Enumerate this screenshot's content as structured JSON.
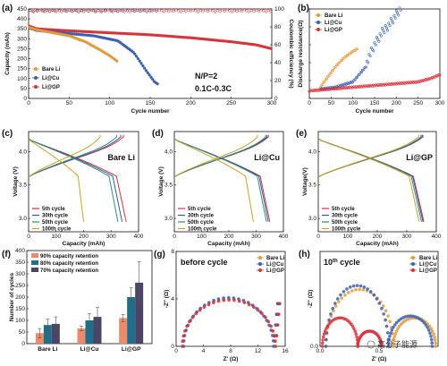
{
  "colors": {
    "bare": "#e39a3b",
    "cu": "#3a5fb3",
    "gp": "#d9333a",
    "c5": "#d9333a",
    "c30": "#2f5aa8",
    "c50": "#2f8f7a",
    "c100": "#c9a227",
    "bar90": "#ec8a6c",
    "bar80": "#1f6f8b",
    "bar70": "#4b4466"
  },
  "watermark": {
    "text": "高分子能源"
  },
  "chart_data": [
    {
      "panel": "(a)",
      "type": "scatter",
      "xlabel": "Cycle number",
      "ylabel": "Capacity (mAh)",
      "y2label": "Coulombic efficiency (%)",
      "xlim": [
        0,
        300
      ],
      "ylim": [
        0,
        450
      ],
      "y2lim": [
        0,
        100
      ],
      "xticks": [
        "0",
        "50",
        "100",
        "150",
        "200",
        "250",
        "300"
      ],
      "yticks": [
        "0",
        "50",
        "100",
        "150",
        "200",
        "250",
        "300",
        "350",
        "400",
        "450"
      ],
      "y2ticks": [
        "0",
        "20",
        "40",
        "60",
        "80",
        "100"
      ],
      "annotations": [
        "N/P=2",
        "0.1C-0.3C"
      ],
      "legend_position": "bottom-left",
      "series": [
        {
          "name": "Bare Li",
          "cycles": 110,
          "capacity": [
            [
              0,
              358
            ],
            [
              10,
              345
            ],
            [
              30,
              330
            ],
            [
              50,
              315
            ],
            [
              70,
              285
            ],
            [
              90,
              240
            ],
            [
              100,
              215
            ],
            [
              110,
              185
            ]
          ],
          "efficiency": 99
        },
        {
          "name": "Li@Cu",
          "cycles": 160,
          "capacity": [
            [
              0,
              355
            ],
            [
              10,
              342
            ],
            [
              40,
              330
            ],
            [
              80,
              315
            ],
            [
              110,
              290
            ],
            [
              130,
              230
            ],
            [
              145,
              140
            ],
            [
              155,
              85
            ],
            [
              160,
              70
            ]
          ],
          "efficiency": 99
        },
        {
          "name": "Li@GP",
          "cycles": 300,
          "capacity": [
            [
              0,
              365
            ],
            [
              10,
              350
            ],
            [
              50,
              340
            ],
            [
              100,
              330
            ],
            [
              150,
              320
            ],
            [
              200,
              305
            ],
            [
              250,
              285
            ],
            [
              280,
              270
            ],
            [
              300,
              250
            ]
          ],
          "efficiency": 99
        }
      ]
    },
    {
      "panel": "(b)",
      "type": "scatter",
      "xlabel": "Cycle number",
      "ylabel": "Discharge resistance(Ω)",
      "xlim": [
        0,
        300
      ],
      "ylim": [
        0,
        1
      ],
      "xticks": [
        "0",
        "50",
        "100",
        "150",
        "200",
        "250",
        "300"
      ],
      "yticks": [
        "",
        "",
        "",
        "",
        "",
        ""
      ],
      "legend_position": "top-left",
      "series": [
        {
          "name": "Bare Li",
          "values": [
            [
              25,
              0.12
            ],
            [
              40,
              0.22
            ],
            [
              60,
              0.35
            ],
            [
              80,
              0.45
            ],
            [
              100,
              0.52
            ],
            [
              110,
              0.55
            ]
          ]
        },
        {
          "name": "Li@Cu",
          "values": [
            [
              25,
              0.1
            ],
            [
              60,
              0.12
            ],
            [
              100,
              0.18
            ],
            [
              130,
              0.35
            ],
            [
              150,
              0.55
            ],
            [
              170,
              0.7
            ],
            [
              190,
              0.82
            ],
            [
              210,
              0.95
            ]
          ]
        },
        {
          "name": "Li@GP",
          "values": [
            [
              0,
              0.08
            ],
            [
              50,
              0.1
            ],
            [
              100,
              0.12
            ],
            [
              150,
              0.14
            ],
            [
              200,
              0.16
            ],
            [
              250,
              0.18
            ],
            [
              280,
              0.22
            ],
            [
              300,
              0.26
            ]
          ]
        }
      ]
    },
    {
      "panel": "(c)",
      "type": "line",
      "title": "Bare Li",
      "xlabel": "Capacity (mAh)",
      "ylabel": "Voltage (V)",
      "xlim": [
        0,
        400
      ],
      "ylim": [
        2.8,
        4.3
      ],
      "xticks": [
        "0",
        "100",
        "200",
        "300",
        "400"
      ],
      "yticks": [
        "3.0",
        "3.5",
        "4.0"
      ],
      "legend_position": "bottom-left",
      "series": [
        {
          "name": "5th cycle",
          "charge_end": 345,
          "discharge_end": 355
        },
        {
          "name": "30th cycle",
          "charge_end": 335,
          "discharge_end": 340
        },
        {
          "name": "50th cycle",
          "charge_end": 320,
          "discharge_end": 325
        },
        {
          "name": "100th cycle",
          "charge_end": 260,
          "discharge_end": 200
        }
      ]
    },
    {
      "panel": "(d)",
      "type": "line",
      "title": "Li@Cu",
      "xlabel": "Capacity (mAh)",
      "ylabel": "Voltage (V)",
      "xlim": [
        0,
        400
      ],
      "ylim": [
        2.8,
        4.3
      ],
      "xticks": [
        "0",
        "100",
        "200",
        "300",
        "400"
      ],
      "yticks": [
        "3.0",
        "3.5",
        "4.0"
      ],
      "legend_position": "bottom-left",
      "series": [
        {
          "name": "5th cycle",
          "charge_end": 345,
          "discharge_end": 350
        },
        {
          "name": "30th cycle",
          "charge_end": 340,
          "discharge_end": 345
        },
        {
          "name": "50th cycle",
          "charge_end": 335,
          "discharge_end": 338
        },
        {
          "name": "100th cycle",
          "charge_end": 305,
          "discharge_end": 290
        }
      ]
    },
    {
      "panel": "(e)",
      "type": "line",
      "title": "Li@GP",
      "xlabel": "Capacity (mAh)",
      "ylabel": "Voltage(V)",
      "xlim": [
        0,
        400
      ],
      "ylim": [
        2.8,
        4.3
      ],
      "xticks": [
        "0",
        "100",
        "200",
        "300",
        "400"
      ],
      "yticks": [
        "3.0",
        "3.5",
        "4.0"
      ],
      "legend_position": "bottom-left",
      "series": [
        {
          "name": "5th cycle",
          "charge_end": 355,
          "discharge_end": 358
        },
        {
          "name": "30th cycle",
          "charge_end": 352,
          "discharge_end": 355
        },
        {
          "name": "50th cycle",
          "charge_end": 348,
          "discharge_end": 350
        },
        {
          "name": "100th cycle",
          "charge_end": 340,
          "discharge_end": 342
        }
      ]
    },
    {
      "panel": "(f)",
      "type": "bar",
      "xlabel": "",
      "ylabel": "Number of cycles",
      "ylim": [
        0,
        400
      ],
      "yticks": [
        "0",
        "50",
        "100",
        "150",
        "200",
        "250",
        "300",
        "350",
        "400"
      ],
      "categories": [
        "Bare Li",
        "Li@Cu",
        "Li@GP"
      ],
      "legend_position": "top-left",
      "series": [
        {
          "name": "90% capacity retention",
          "values": [
            45,
            65,
            110
          ],
          "errors": [
            20,
            10,
            15
          ]
        },
        {
          "name": "80% capacity retention",
          "values": [
            80,
            100,
            200
          ],
          "errors": [
            25,
            30,
            40
          ]
        },
        {
          "name": "70% capacity retention",
          "values": [
            85,
            115,
            262
          ],
          "errors": [
            30,
            40,
            90
          ]
        }
      ]
    },
    {
      "panel": "(g)",
      "type": "scatter",
      "title": "before cycle",
      "xlabel": "Z' (Ω)",
      "ylabel": "-Z'' (Ω)",
      "xlim": [
        0,
        16
      ],
      "ylim": [
        0,
        8
      ],
      "xticks": [
        "0",
        "4",
        "8",
        "12",
        "16"
      ],
      "yticks": [
        "0",
        "4",
        "8"
      ],
      "legend_position": "top-right",
      "series": [
        {
          "name": "Bare Li",
          "semicircle": [
            1,
            14.5,
            4.0
          ]
        },
        {
          "name": "Li@Cu",
          "semicircle": [
            1.1,
            14.3,
            4.1
          ]
        },
        {
          "name": "Li@GP",
          "semicircle": [
            0.9,
            14.6,
            3.9
          ]
        }
      ]
    },
    {
      "panel": "(h)",
      "type": "scatter",
      "title_prefix": "10",
      "title_sup": "th",
      "title_suffix": " cycle",
      "xlabel": "Z' (Ω)",
      "ylabel": "-Z'' (Ω)",
      "xlim": [
        0,
        1
      ],
      "ylim": [
        0,
        0.5
      ],
      "xticks": [
        "0.0",
        "0.5"
      ],
      "yticks": [
        "0.0"
      ],
      "legend_position": "top-right",
      "series": [
        {
          "name": "Bare Li",
          "semicircles": [
            [
              0.05,
              0.62,
              0.3
            ],
            [
              0.62,
              0.98,
              0.15
            ]
          ]
        },
        {
          "name": "Li@Cu",
          "semicircles": [
            [
              0.05,
              0.58,
              0.32
            ],
            [
              0.58,
              0.95,
              0.16
            ]
          ]
        },
        {
          "name": "Li@GP",
          "semicircles": [
            [
              0.02,
              0.32,
              0.15
            ],
            [
              0.32,
              0.52,
              0.08
            ]
          ]
        }
      ]
    }
  ]
}
